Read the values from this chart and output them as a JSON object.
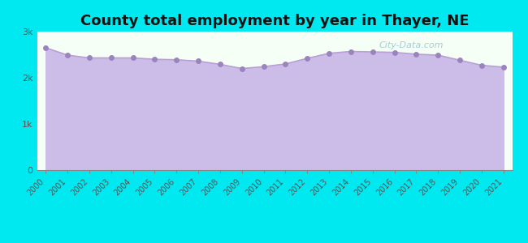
{
  "title": "County total employment by year in Thayer, NE",
  "years": [
    2000,
    2001,
    2002,
    2003,
    2004,
    2005,
    2006,
    2007,
    2008,
    2009,
    2010,
    2011,
    2012,
    2013,
    2014,
    2015,
    2016,
    2017,
    2018,
    2019,
    2020,
    2021
  ],
  "values": [
    2650,
    2490,
    2430,
    2430,
    2430,
    2400,
    2390,
    2360,
    2290,
    2200,
    2240,
    2300,
    2420,
    2530,
    2570,
    2560,
    2550,
    2510,
    2490,
    2380,
    2270,
    2230
  ],
  "yticks": [
    0,
    1000,
    2000,
    3000
  ],
  "ytick_labels": [
    "0",
    "1k",
    "2k",
    "3k"
  ],
  "ylim": [
    0,
    3000
  ],
  "line_color": "#b89fd4",
  "fill_color": "#cbbde8",
  "fill_alpha": 1.0,
  "marker_color": "#9b84be",
  "marker_size": 5,
  "background_color": "#00e8f0",
  "plot_bg_top": "#f5fff5",
  "plot_bg_bottom": "#dde8f8",
  "title_fontsize": 13,
  "tick_fontsize": 8,
  "watermark": "City-Data.com"
}
